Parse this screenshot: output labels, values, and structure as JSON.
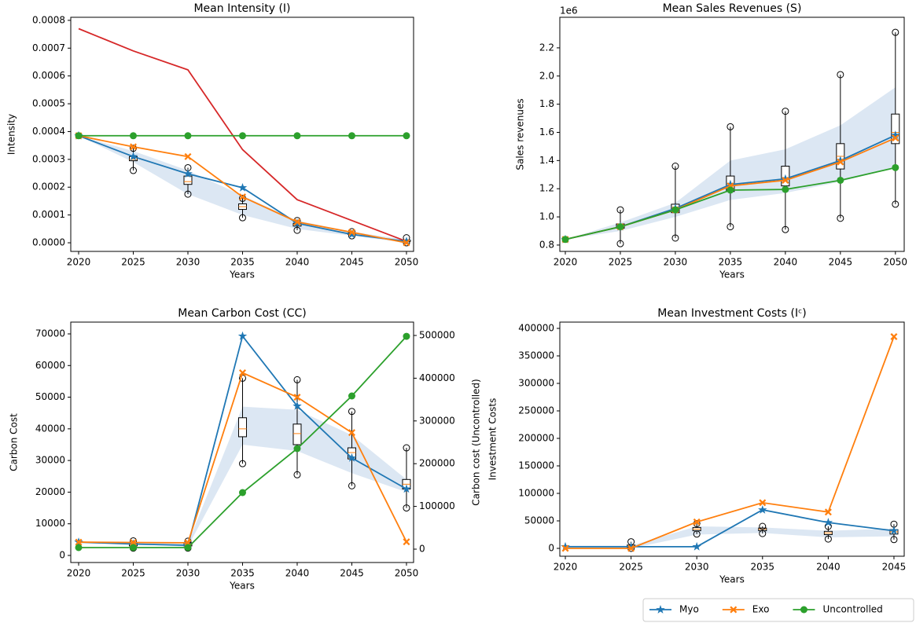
{
  "chart_data": [
    {
      "type": "line",
      "title": "Mean Intensity (I)",
      "xlabel": "Years",
      "ylabel": "Intensity",
      "x": [
        2020,
        2025,
        2030,
        2035,
        2040,
        2045,
        2050
      ],
      "xlim": [
        2019.28,
        2050.65
      ],
      "xticks": [
        2020,
        2025,
        2030,
        2035,
        2040,
        2045,
        2050
      ],
      "ylim": [
        -3.1e-05,
        0.000811
      ],
      "yticks": [
        {
          "value": 0,
          "label": "0.0000"
        },
        {
          "value": 0.0001,
          "label": "0.0001"
        },
        {
          "value": 0.0002,
          "label": "0.0002"
        },
        {
          "value": 0.0003,
          "label": "0.0003"
        },
        {
          "value": 0.0004,
          "label": "0.0004"
        },
        {
          "value": 0.0005,
          "label": "0.0005"
        },
        {
          "value": 0.0006,
          "label": "0.0006"
        },
        {
          "value": 0.0007,
          "label": "0.0007"
        },
        {
          "value": 0.0008,
          "label": "0.0008"
        }
      ],
      "band": {
        "color": "#dce7f3",
        "lower": [
          0.000385,
          0.00029,
          0.000175,
          0.0001,
          5e-05,
          2.5e-05,
          0
        ],
        "upper": [
          0.000385,
          0.00033,
          0.00026,
          0.00017,
          8e-05,
          4e-05,
          1e-05
        ]
      },
      "boxes": [
        {
          "x": 2025,
          "lo": 0.00026,
          "q1": 0.000295,
          "med": 0.0003,
          "q3": 0.00031,
          "hi": 0.00034
        },
        {
          "x": 2030,
          "lo": 0.000175,
          "q1": 0.00021,
          "med": 0.00022,
          "q3": 0.00024,
          "hi": 0.00027
        },
        {
          "x": 2035,
          "lo": 9e-05,
          "q1": 0.00012,
          "med": 0.00013,
          "q3": 0.00014,
          "hi": 0.00016
        },
        {
          "x": 2040,
          "lo": 4.5e-05,
          "q1": 6e-05,
          "med": 6.5e-05,
          "q3": 7e-05,
          "hi": 8e-05
        },
        {
          "x": 2045,
          "lo": 2.5e-05,
          "q1": 3e-05,
          "med": 3.2e-05,
          "q3": 3.5e-05,
          "hi": 4e-05
        },
        {
          "x": 2050,
          "lo": 0,
          "q1": 5e-06,
          "med": 8e-06,
          "q3": 1e-05,
          "hi": 1.8e-05
        }
      ],
      "series": [
        {
          "color": "#d62728",
          "values": [
            0.00077,
            0.00069,
            0.000622,
            0.000335,
            0.000155,
            8e-05,
            5e-06
          ]
        },
        {
          "name": "Myo",
          "color": "#1f77b4",
          "marker": "*",
          "values": [
            0.000385,
            0.00031,
            0.000248,
            0.000198,
            7e-05,
            3e-05,
            5e-06
          ]
        },
        {
          "name": "Exo",
          "color": "#ff7f0e",
          "marker": "X",
          "values": [
            0.000385,
            0.000345,
            0.00031,
            0.000165,
            7.5e-05,
            3.8e-05,
            0
          ]
        },
        {
          "name": "Uncontrolled",
          "color": "#2ca02c",
          "marker": "o",
          "values": [
            0.000385,
            0.000385,
            0.000385,
            0.000385,
            0.000385,
            0.000385,
            0.000385
          ]
        }
      ]
    },
    {
      "type": "line",
      "title": "Mean Sales Revenues (S)",
      "xlabel": "Years",
      "ylabel": "Sales revenues",
      "offset_label": "1e6",
      "x": [
        2020,
        2025,
        2030,
        2035,
        2040,
        2045,
        2050
      ],
      "xlim": [
        2019.5,
        2050.8
      ],
      "xticks": [
        2020,
        2025,
        2030,
        2035,
        2040,
        2045,
        2050
      ],
      "ylim": [
        0.755,
        2.417
      ],
      "yticks": [
        0.8,
        {
          "value": 1,
          "label": "1.0"
        },
        1.2,
        1.4,
        1.6,
        1.8,
        {
          "value": 2,
          "label": "2.0"
        },
        2.2
      ],
      "band": {
        "color": "#dce7f3",
        "lower": [
          0.84,
          0.9,
          1.0,
          1.12,
          1.17,
          1.25,
          1.35
        ],
        "upper": [
          0.84,
          0.96,
          1.1,
          1.4,
          1.48,
          1.65,
          1.92
        ]
      },
      "boxes": [
        {
          "x": 2025,
          "lo": 0.81,
          "q1": 0.92,
          "med": 0.93,
          "q3": 0.95,
          "hi": 1.05
        },
        {
          "x": 2030,
          "lo": 0.85,
          "q1": 1.03,
          "med": 1.05,
          "q3": 1.09,
          "hi": 1.36
        },
        {
          "x": 2035,
          "lo": 0.93,
          "q1": 1.18,
          "med": 1.22,
          "q3": 1.29,
          "hi": 1.64
        },
        {
          "x": 2040,
          "lo": 0.91,
          "q1": 1.22,
          "med": 1.27,
          "q3": 1.36,
          "hi": 1.75
        },
        {
          "x": 2045,
          "lo": 0.99,
          "q1": 1.34,
          "med": 1.43,
          "q3": 1.52,
          "hi": 2.01
        },
        {
          "x": 2050,
          "lo": 1.09,
          "q1": 1.52,
          "med": 1.6,
          "q3": 1.73,
          "hi": 2.31
        }
      ],
      "series": [
        {
          "name": "Myo",
          "color": "#1f77b4",
          "marker": "*",
          "values": [
            0.84,
            0.93,
            1.06,
            1.23,
            1.27,
            1.4,
            1.58
          ]
        },
        {
          "name": "Exo",
          "color": "#ff7f0e",
          "marker": "X",
          "values": [
            0.84,
            0.93,
            1.05,
            1.22,
            1.26,
            1.39,
            1.56
          ]
        },
        {
          "name": "Uncontrolled",
          "color": "#2ca02c",
          "marker": "o",
          "values": [
            0.84,
            0.93,
            1.05,
            1.19,
            1.195,
            1.26,
            1.35
          ]
        }
      ]
    },
    {
      "type": "line",
      "title": "Mean Carbon Cost (CC)",
      "xlabel": "Years",
      "ylabel": "Carbon Cost",
      "y2label": "Carbon cost (Uncontrolled)",
      "x": [
        2020,
        2025,
        2030,
        2035,
        2040,
        2045,
        2050
      ],
      "xlim": [
        2019.28,
        2050.65
      ],
      "xticks": [
        2020,
        2025,
        2030,
        2035,
        2040,
        2045,
        2050
      ],
      "ylim": [
        -2233,
        73720
      ],
      "yticks": [
        0,
        10000,
        20000,
        30000,
        40000,
        50000,
        60000,
        70000
      ],
      "y2lim": [
        -31250,
        531250
      ],
      "y2ticks": [
        0,
        100000,
        200000,
        300000,
        400000,
        500000
      ],
      "band": {
        "color": "#dce7f3",
        "lower": [
          4200,
          3500,
          2800,
          35000,
          33000,
          26000,
          20000
        ],
        "upper": [
          4200,
          4000,
          3800,
          47000,
          46000,
          38000,
          24000
        ]
      },
      "boxes": [
        {
          "x": 2025,
          "lo": 2300,
          "q1": 3000,
          "med": 3500,
          "q3": 4000,
          "hi": 4600
        },
        {
          "x": 2030,
          "lo": 2300,
          "q1": 3000,
          "med": 3400,
          "q3": 4000,
          "hi": 4500
        },
        {
          "x": 2035,
          "lo": 29000,
          "q1": 37500,
          "med": 40000,
          "q3": 43500,
          "hi": 56000
        },
        {
          "x": 2040,
          "lo": 25500,
          "q1": 35000,
          "med": 38500,
          "q3": 41500,
          "hi": 55500
        },
        {
          "x": 2045,
          "lo": 22000,
          "q1": 30500,
          "med": 32500,
          "q3": 34000,
          "hi": 45500
        },
        {
          "x": 2050,
          "lo": 15000,
          "q1": 21000,
          "med": 22500,
          "q3": 24000,
          "hi": 34000
        }
      ],
      "series": [
        {
          "name": "Myo",
          "color": "#1f77b4",
          "marker": "*",
          "values": [
            4200,
            3600,
            3200,
            69300,
            47200,
            30800,
            21000
          ]
        },
        {
          "name": "Exo",
          "color": "#ff7f0e",
          "marker": "X",
          "values": [
            4200,
            4100,
            4000,
            57700,
            50000,
            38800,
            4300
          ]
        },
        {
          "name": "Uncontrolled",
          "color": "#2ca02c",
          "marker": "o",
          "axis": "y2",
          "values": [
            3700,
            3700,
            3700,
            132350,
            235300,
            358450,
            498000
          ]
        }
      ]
    },
    {
      "type": "line",
      "title": "Mean Investment Costs (Iᶜ)",
      "xlabel": "Years",
      "ylabel": "Investment Costs",
      "x": [
        2020,
        2025,
        2030,
        2035,
        2040,
        2045
      ],
      "xlim": [
        2019.58,
        2045.78
      ],
      "xticks": [
        2020,
        2025,
        2030,
        2035,
        2040,
        2045
      ],
      "ylim": [
        -14286,
        411430
      ],
      "yticks": [
        0,
        50000,
        100000,
        150000,
        200000,
        250000,
        300000,
        350000,
        400000
      ],
      "band": {
        "color": "#dce7f3",
        "lower": [
          0,
          0,
          25000,
          28000,
          20000,
          22000
        ],
        "upper": [
          5000,
          5000,
          40000,
          38000,
          32000,
          36000
        ]
      },
      "boxes": [
        {
          "x": 2025,
          "lo": 0,
          "q1": 2000,
          "med": 4000,
          "q3": 6000,
          "hi": 12000
        },
        {
          "x": 2030,
          "lo": 26000,
          "q1": 32000,
          "med": 35000,
          "q3": 38000,
          "hi": 45000
        },
        {
          "x": 2035,
          "lo": 27000,
          "q1": 32000,
          "med": 35000,
          "q3": 37000,
          "hi": 40000
        },
        {
          "x": 2040,
          "lo": 17000,
          "q1": 25000,
          "med": 28000,
          "q3": 31000,
          "hi": 40000
        },
        {
          "x": 2045,
          "lo": 16000,
          "q1": 26000,
          "med": 30000,
          "q3": 34000,
          "hi": 44000
        }
      ],
      "series": [
        {
          "name": "Myo",
          "color": "#1f77b4",
          "marker": "*",
          "values": [
            3000,
            3000,
            3000,
            70000,
            47000,
            32000
          ]
        },
        {
          "name": "Exo",
          "color": "#ff7f0e",
          "marker": "X",
          "values": [
            0,
            0,
            48000,
            83000,
            66000,
            385000
          ]
        }
      ]
    }
  ]
}
